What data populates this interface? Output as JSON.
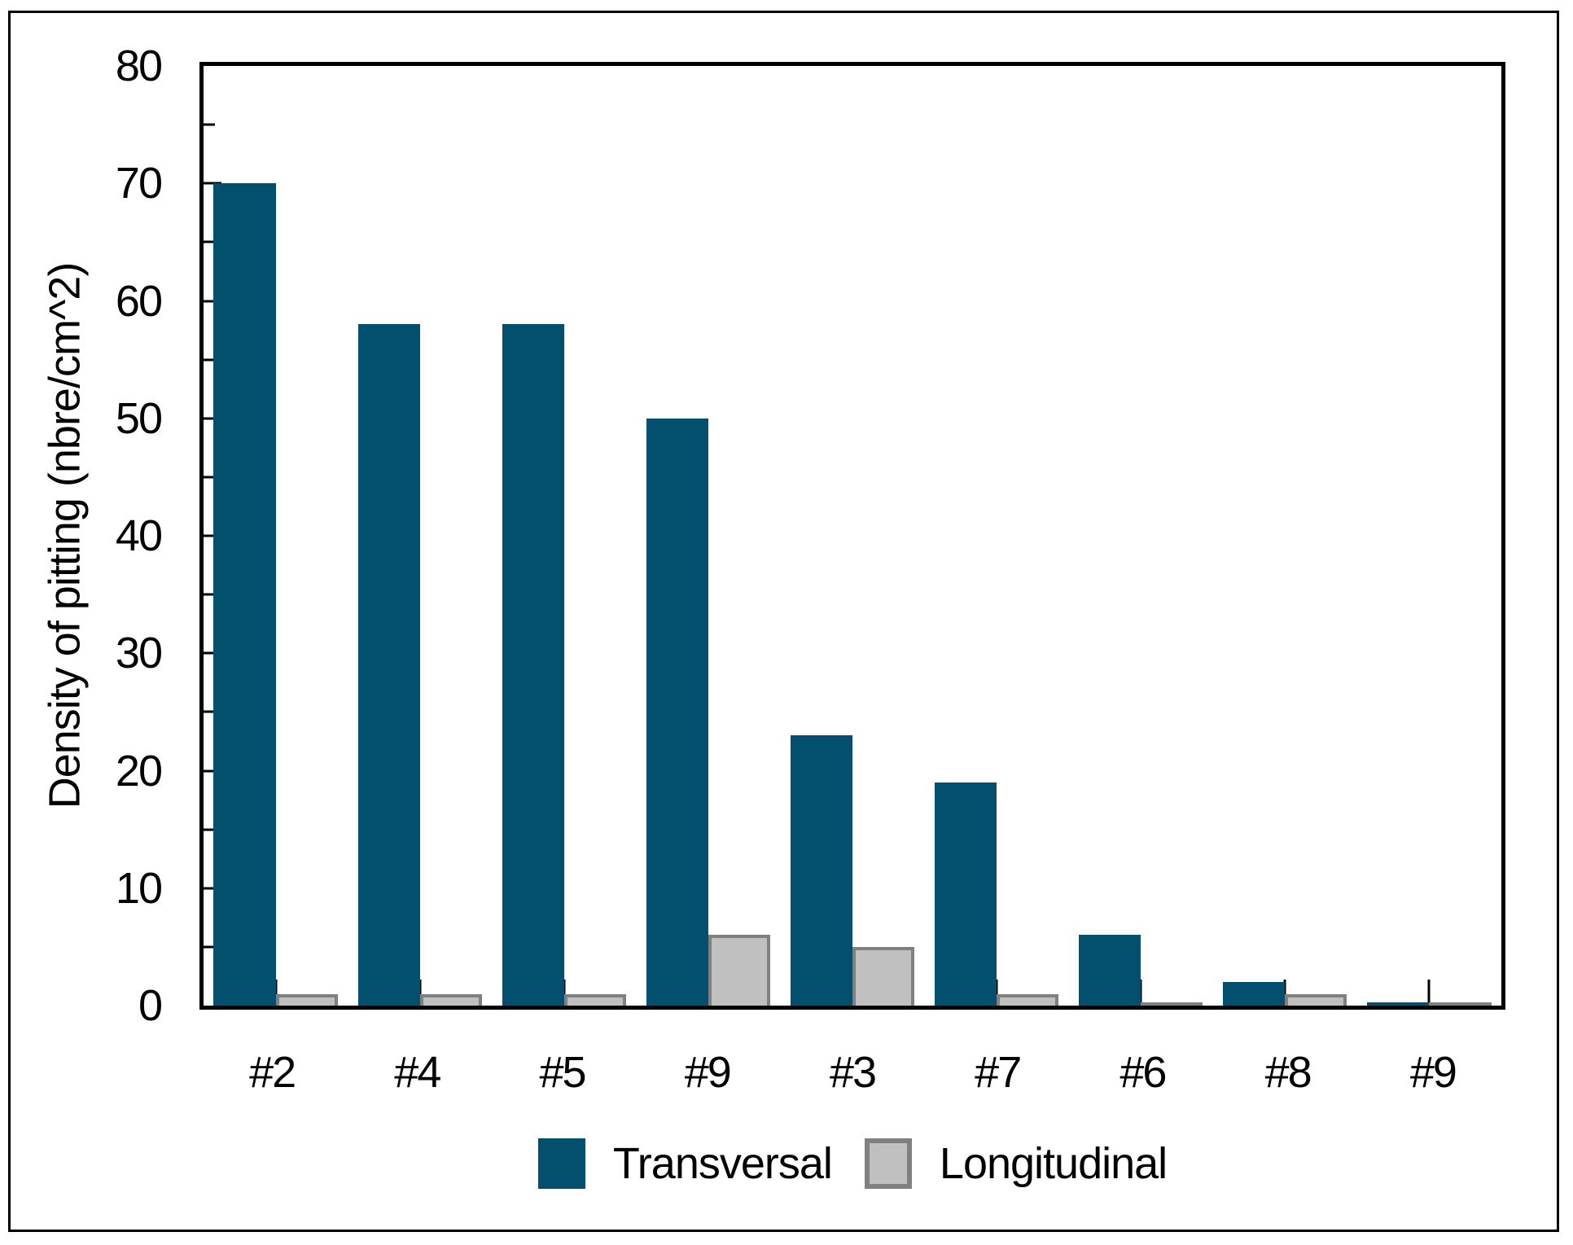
{
  "figure": {
    "background": "#ffffff",
    "border_color": "#000000"
  },
  "chart_data": {
    "type": "bar",
    "title": "",
    "xlabel": "",
    "ylabel": "Density of pitting (nbre/cm^2)",
    "categories": [
      "#2",
      "#4",
      "#5",
      "#9",
      "#3",
      "#7",
      "#6",
      "#8",
      "#9"
    ],
    "series": [
      {
        "name": "Transversal",
        "color": "#02506e",
        "values": [
          70,
          58,
          58,
          50,
          23,
          19,
          6,
          2,
          0.3
        ]
      },
      {
        "name": "Longitudinal",
        "color": "#c0c0c0",
        "border_color": "#808080",
        "values": [
          1,
          1,
          1,
          6,
          5,
          1,
          0.2,
          1,
          0.2
        ]
      }
    ],
    "ylim": [
      0,
      80
    ],
    "y_major_ticks": [
      0,
      10,
      20,
      30,
      40,
      50,
      60,
      70,
      80
    ],
    "y_minor_step": 5,
    "grid": false,
    "legend_position": "bottom-center",
    "axis_color": "#000000"
  }
}
